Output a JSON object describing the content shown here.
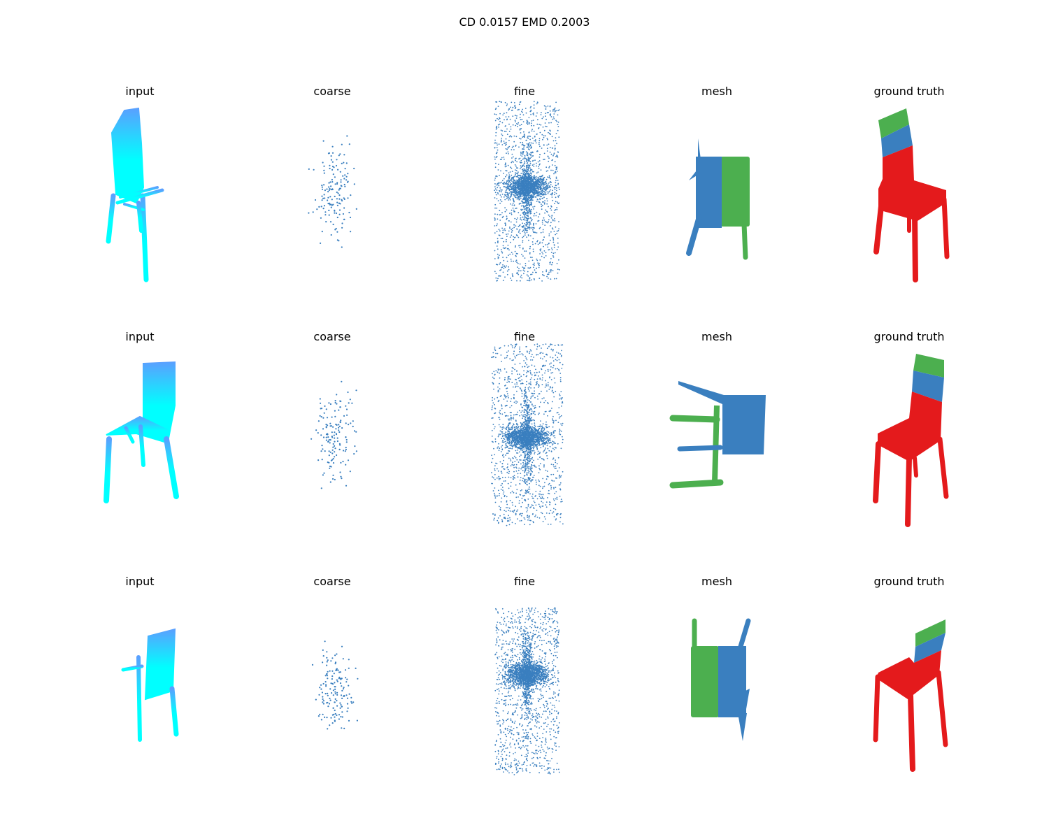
{
  "figure": {
    "title": "CD 0.0157  EMD 0.2003"
  },
  "colors": {
    "input_top": "#5aa0ff",
    "input_bottom": "#00ffff",
    "points": "#3a7fbf",
    "green": "#4caf4f",
    "red": "#e41a1c"
  },
  "rows": [
    {
      "panels": [
        {
          "title": "input",
          "icon": "chair-partial-point-cloud"
        },
        {
          "title": "coarse",
          "icon": "sparse-point-cloud"
        },
        {
          "title": "fine",
          "icon": "dense-point-cloud"
        },
        {
          "title": "mesh",
          "icon": "segmented-chair"
        },
        {
          "title": "ground truth",
          "icon": "segmented-chair"
        }
      ]
    },
    {
      "panels": [
        {
          "title": "input",
          "icon": "chair-partial-point-cloud"
        },
        {
          "title": "coarse",
          "icon": "sparse-point-cloud"
        },
        {
          "title": "fine",
          "icon": "dense-point-cloud"
        },
        {
          "title": "mesh",
          "icon": "segmented-chair"
        },
        {
          "title": "ground truth",
          "icon": "segmented-chair"
        }
      ]
    },
    {
      "panels": [
        {
          "title": "input",
          "icon": "chair-partial-point-cloud"
        },
        {
          "title": "coarse",
          "icon": "sparse-point-cloud"
        },
        {
          "title": "fine",
          "icon": "dense-point-cloud"
        },
        {
          "title": "mesh",
          "icon": "segmented-chair"
        },
        {
          "title": "ground truth",
          "icon": "segmented-chair"
        }
      ]
    }
  ]
}
